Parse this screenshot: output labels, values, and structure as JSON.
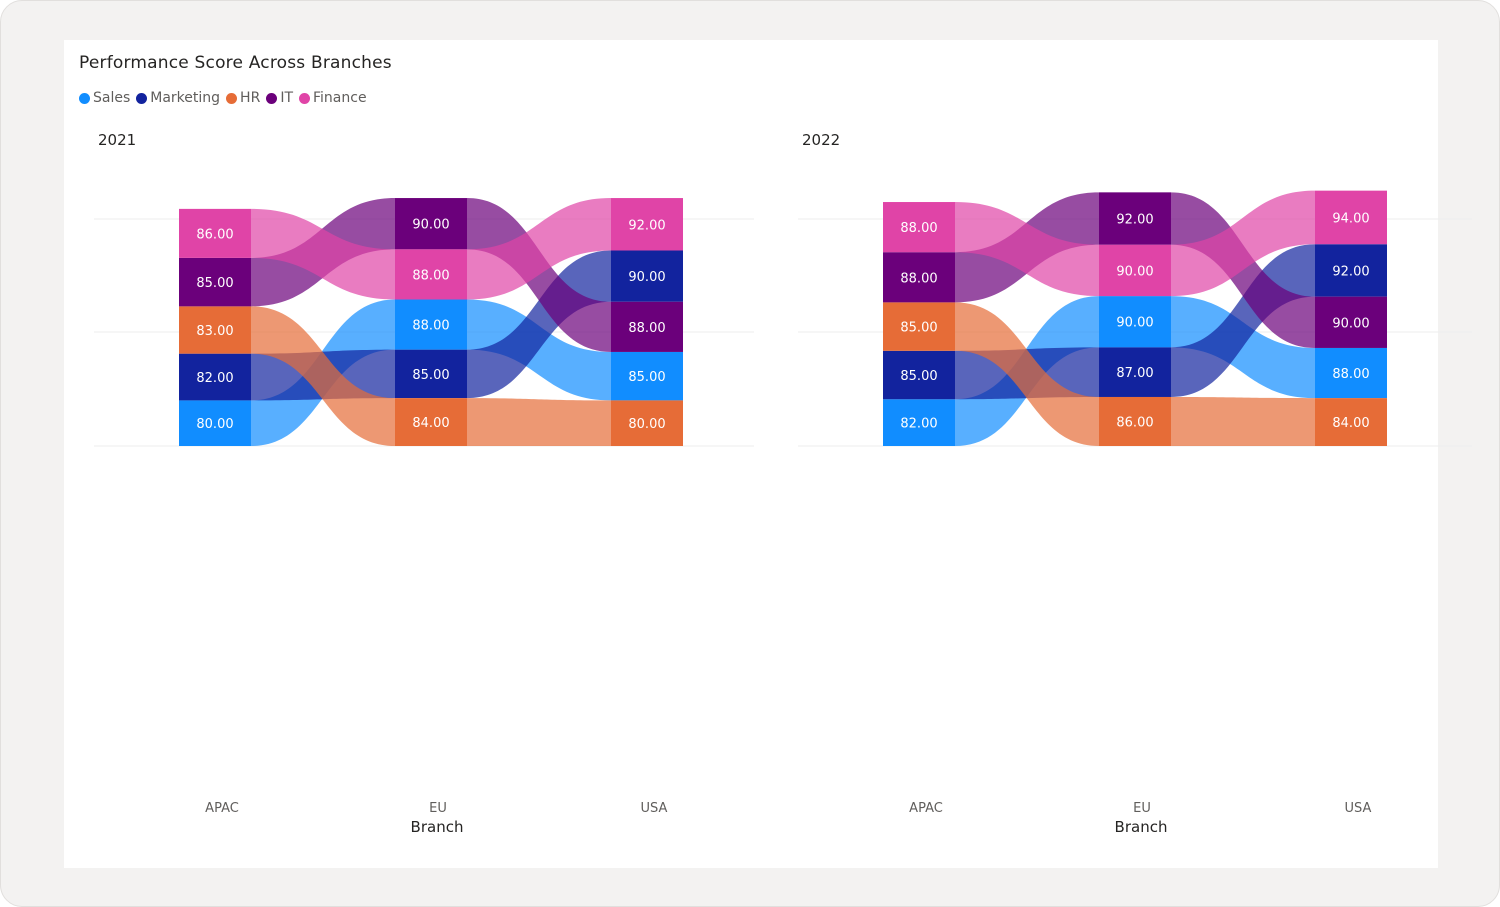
{
  "title": "Performance Score Across Branches",
  "legend": [
    {
      "name": "Sales",
      "color": "#118DFF"
    },
    {
      "name": "Marketing",
      "color": "#12239E"
    },
    {
      "name": "HR",
      "color": "#E66C37"
    },
    {
      "name": "IT",
      "color": "#6B007B"
    },
    {
      "name": "Finance",
      "color": "#E044A7"
    }
  ],
  "chart_data": [
    {
      "type": "ribbon",
      "title": "2021",
      "xlabel": "Branch",
      "categories": [
        "APAC",
        "EU",
        "USA"
      ],
      "series": [
        {
          "name": "Sales",
          "color": "#118DFF",
          "values": [
            80,
            88,
            85
          ]
        },
        {
          "name": "Marketing",
          "color": "#12239E",
          "values": [
            82,
            85,
            90
          ]
        },
        {
          "name": "HR",
          "color": "#E66C37",
          "values": [
            83,
            84,
            80
          ]
        },
        {
          "name": "IT",
          "color": "#6B007B",
          "values": [
            85,
            90,
            88
          ]
        },
        {
          "name": "Finance",
          "color": "#E044A7",
          "values": [
            86,
            88,
            92
          ]
        }
      ]
    },
    {
      "type": "ribbon",
      "title": "2022",
      "xlabel": "Branch",
      "categories": [
        "APAC",
        "EU",
        "USA"
      ],
      "series": [
        {
          "name": "Sales",
          "color": "#118DFF",
          "values": [
            82,
            90,
            88
          ]
        },
        {
          "name": "Marketing",
          "color": "#12239E",
          "values": [
            85,
            87,
            92
          ]
        },
        {
          "name": "HR",
          "color": "#E66C37",
          "values": [
            85,
            86,
            84
          ]
        },
        {
          "name": "IT",
          "color": "#6B007B",
          "values": [
            88,
            92,
            90
          ]
        },
        {
          "name": "Finance",
          "color": "#E044A7",
          "values": [
            88,
            90,
            94
          ]
        }
      ]
    }
  ]
}
